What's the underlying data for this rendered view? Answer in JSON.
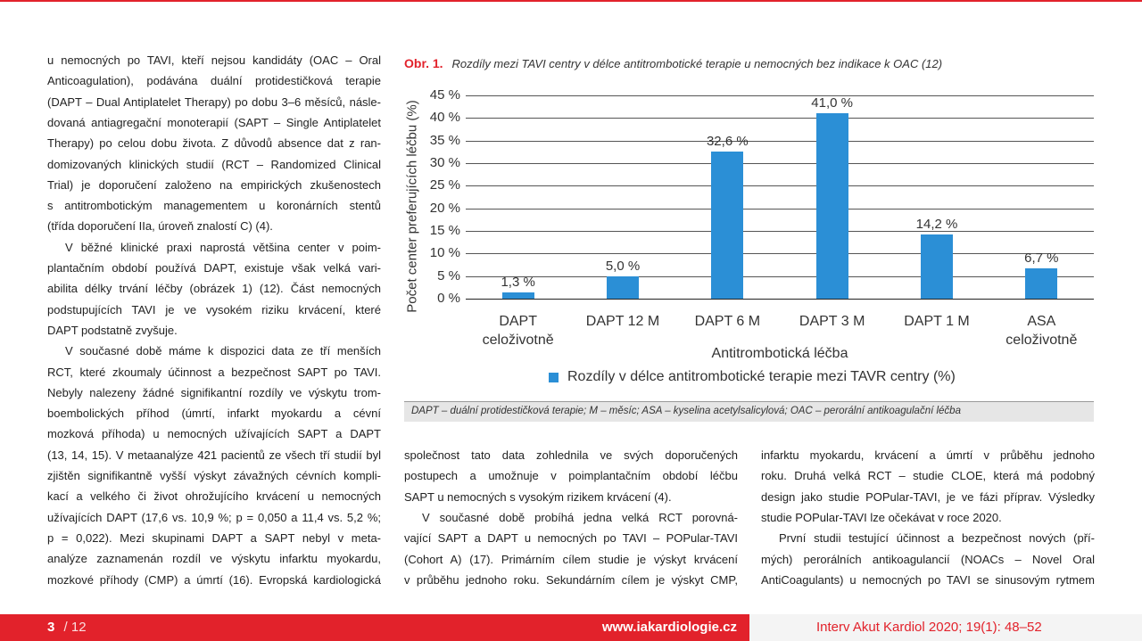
{
  "chart_data": {
    "type": "bar",
    "caption_label": "Obr. 1.",
    "title": "Rozdíly mezi TAVI centry v délce antitrombotické terapie u nemocných bez indikace k OAC (12)",
    "x_label": "Antitrombotická léčba",
    "y_label": "Počet center preferujících léčbu (%)",
    "categories": [
      "DAPT celoživotně",
      "DAPT 12 M",
      "DAPT 6 M",
      "DAPT 3 M",
      "DAPT 1 M",
      "ASA celoživotně"
    ],
    "series": [
      {
        "name": "Rozdíly v délce antitrombotické terapie mezi TAVR centry (%)",
        "color": "#2b8fd6",
        "values": [
          1.3,
          5.0,
          32.6,
          41.0,
          14.2,
          6.7
        ],
        "value_labels": [
          "1,3 %",
          "5,0 %",
          "32,6 %",
          "41,0 %",
          "14,2 %",
          "6,7 %"
        ]
      }
    ],
    "ylim": [
      0,
      45
    ],
    "yticks": [
      {
        "value": 0,
        "label": "0 %"
      },
      {
        "value": 5,
        "label": "5 %"
      },
      {
        "value": 10,
        "label": "10 %"
      },
      {
        "value": 15,
        "label": "15 %"
      },
      {
        "value": 20,
        "label": "20 %"
      },
      {
        "value": 25,
        "label": "25 %"
      },
      {
        "value": 30,
        "label": "30 %"
      },
      {
        "value": 35,
        "label": "35 %"
      },
      {
        "value": 40,
        "label": "40 %"
      },
      {
        "value": 45,
        "label": "45 %"
      }
    ],
    "grid": true,
    "note": "DAPT – duální protidestičková terapie; M – měsíc; ASA – kyselina acetylsalicylová; OAC – perorální antikoagulační léčba"
  },
  "columns": [
    {
      "paragraphs": [
        {
          "lines": [
            "u nemocných po TAVI, kteří nejsou kandidáty (OAC – Oral",
            "Anticoagulation), podávána duální protidestičková terapie",
            "(DAPT – Dual Antiplatelet Therapy) po dobu 3–6 měsíců, násle-",
            "dovaná antiagregační monoterapií (SAPT – Single Antiplatelet",
            "Therapy) po celou dobu života. Z důvodů absence dat z ran-",
            "domizovaných klinických studií (RCT – Randomized Clinical",
            "Trial) je doporučení založeno na empirických zkušenostech",
            "s antitrombotickým managementem u koronárních stentů",
            "(třída doporučení IIa, úroveň znalostí C) (4)."
          ]
        },
        {
          "lines": [
            "V běžné klinické praxi naprostá většina center v poim-",
            "plantačním období používá DAPT, existuje však velká vari-",
            "abilita délky trvání léčby (obrázek 1) (12). Část nemocných",
            "podstupujících TAVI je ve vysokém riziku krvácení, které",
            "DAPT podstatně zvyšuje."
          ]
        },
        {
          "lines": [
            "V současné době máme k dispozici data ze tří menších",
            "RCT, které zkoumaly účinnost a bezpečnost SAPT po TAVI.",
            "Nebyly nalezeny žádné signifikantní rozdíly ve výskytu trom-",
            "boembolických příhod (úmrtí, infarkt myokardu a cévní",
            "mozková příhoda) u nemocných užívajících SAPT a DAPT",
            "(13, 14, 15). V metaanalýze 421 pacientů ze všech tří studií byl",
            "zjištěn signifikantně vyšší výskyt závažných cévních kompli-",
            "kací a velkého či život ohrožujícího krvácení u nemocných",
            "užívajících DAPT (17,6 vs. 10,9 %; p = 0,050 a 11,4 vs. 5,2 %;",
            "p = 0,022). Mezi skupinami DAPT a SAPT nebyl v meta-",
            "analýze zaznamenán rozdíl ve výskytu infarktu myokardu,",
            "mozkové příhody (CMP) a úmrtí (16). Evropská kardiologická"
          ]
        }
      ]
    },
    {
      "paragraphs": [
        {
          "lines": [
            "společnost tato data zohlednila ve svých doporučených",
            "postupech a umožnuje v poimplantačním období léčbu",
            "SAPT u nemocných s vysokým rizikem krvácení (4)."
          ]
        },
        {
          "lines": [
            "V současné době probíhá jedna velká RCT porovná-",
            "vající SAPT a DAPT u nemocných po TAVI – POPular-TAVI",
            "(Cohort A) (17). Primárním cílem studie je výskyt krvácení",
            "v průběhu jednoho roku. Sekundárním cílem je výskyt CMP,"
          ]
        }
      ]
    },
    {
      "paragraphs": [
        {
          "lines": [
            "infarktu myokardu, krvácení a úmrtí v průběhu jednoho",
            "roku. Druhá velká RCT – studie CLOE, která má podobný",
            "design jako studie POPular-TAVI, je ve fázi příprav. Výsledky",
            "studie POPular-TAVI lze očekávat v roce 2020."
          ]
        },
        {
          "lines": [
            "První studii testující účinnost a bezpečnost nových (pří-",
            "mých) perorálních antikoagulancií (NOACs – Novel Oral",
            "AntiCoagulants) u nemocných po TAVI se sinusovým rytmem"
          ]
        }
      ]
    }
  ],
  "footer": {
    "page": "3",
    "total": "/ 12",
    "website": "www.iakardiologie.cz",
    "citation": "Interv Akut Kardiol 2020; 19(1): 48–52"
  }
}
